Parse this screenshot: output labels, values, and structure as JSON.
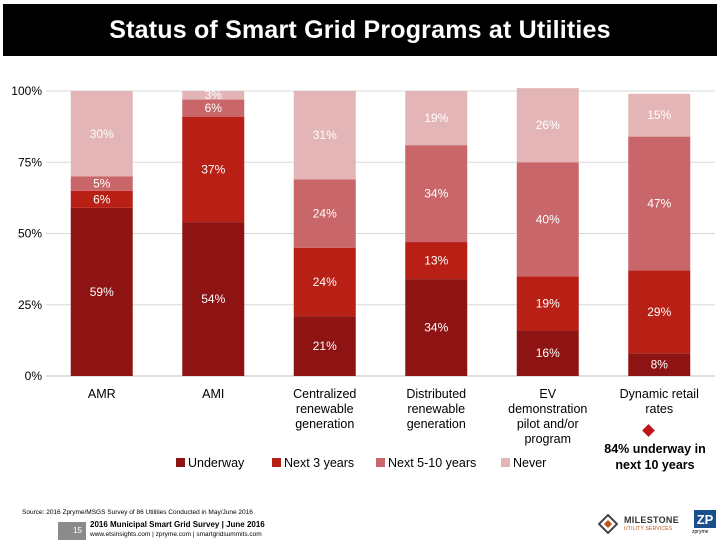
{
  "title": "Status of Smart Grid Programs at Utilities",
  "colors": {
    "underway": "#8e1414",
    "next3": "#b81f15",
    "next5to10": "#c9666a",
    "never": "#e3b5b6"
  },
  "chart_data": {
    "type": "bar",
    "stacked": true,
    "normalized": true,
    "categories": [
      "AMR",
      "AMI",
      "Centralized renewable generation",
      "Distributed renewable generation",
      "EV demonstration pilot and/or program",
      "Dynamic retail rates"
    ],
    "category_lines": [
      [
        "AMR"
      ],
      [
        "AMI"
      ],
      [
        "Centralized",
        "renewable",
        "generation"
      ],
      [
        "Distributed",
        "renewable",
        "generation"
      ],
      [
        "EV",
        "demonstration",
        "pilot and/or",
        "program"
      ],
      [
        "Dynamic retail",
        "rates"
      ]
    ],
    "series": [
      {
        "name": "Underway",
        "values": [
          59,
          54,
          21,
          34,
          16,
          8
        ],
        "labels": [
          "59%",
          "54%",
          "21%",
          "34%",
          "16%",
          "8%"
        ]
      },
      {
        "name": "Next 3 years",
        "values": [
          6,
          37,
          24,
          13,
          19,
          29
        ],
        "labels": [
          "6%",
          "37%",
          "24%",
          "13%",
          "19%",
          "29%"
        ]
      },
      {
        "name": "Next 5-10 years",
        "values": [
          5,
          6,
          24,
          34,
          40,
          47
        ],
        "labels": [
          "5%",
          "6%",
          "24%",
          "34%",
          "40%",
          "47%"
        ]
      },
      {
        "name": "Never",
        "values": [
          30,
          3,
          31,
          19,
          26,
          15
        ],
        "labels": [
          "30%",
          "3%",
          "31%",
          "19%",
          "26%",
          "15%"
        ]
      }
    ],
    "yticks": [
      "0%",
      "25%",
      "50%",
      "75%",
      "100%"
    ],
    "ylim": [
      0,
      100
    ],
    "legend_position": "bottom"
  },
  "callout": {
    "line1": "84% underway in",
    "line2": "next 10 years"
  },
  "source": "Source: 2016 Zpryme/MSGS Survey of 86 Utilities Conducted in May/June 2016",
  "footer": {
    "page_number": "15",
    "line1": "2016 Municipal Smart Grid Survey | June 2016",
    "line2": "www.etsinsights.com | zpryme.com | smartgridsummits.com"
  },
  "logos": {
    "milestone_line1": "MILESTONE",
    "milestone_line2": "UTILITY SERVICES",
    "zpryme": "zpryme"
  }
}
